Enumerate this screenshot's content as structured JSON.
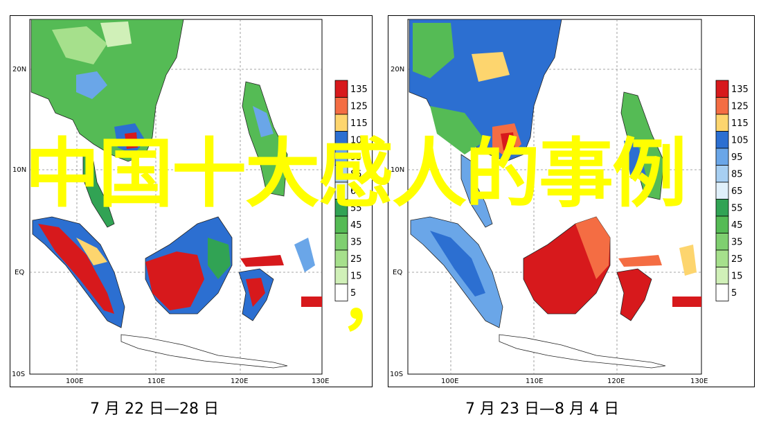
{
  "maps": [
    {
      "id": "left",
      "caption": "7 月 22 日—28 日",
      "lat_labels": [
        "20N",
        "10N",
        "EQ",
        "10S"
      ],
      "lon_labels": [
        "100E",
        "110E",
        "120E",
        "130E"
      ],
      "legend": [
        "135",
        "125",
        "115",
        "105",
        "95",
        "85",
        "65",
        "55",
        "45",
        "35",
        "25",
        "15",
        "5"
      ]
    },
    {
      "id": "right",
      "caption": "7 月 23 日—8 月 4 日",
      "lat_labels": [
        "20N",
        "10N",
        "EQ",
        "10S"
      ],
      "lon_labels": [
        "100E",
        "110E",
        "120E",
        "130E"
      ],
      "legend": [
        "135",
        "125",
        "115",
        "105",
        "95",
        "85",
        "65",
        "55",
        "45",
        "35",
        "25",
        "15",
        "5"
      ]
    }
  ],
  "legend_colors": [
    "#d7191c",
    "#f46d43",
    "#fdd56e",
    "#2c6fd1",
    "#6aa6e8",
    "#a7cff2",
    "#e0f0fa",
    "#31a354",
    "#55bb55",
    "#7fcf70",
    "#a6e08c",
    "#d0f0b8",
    "#ffffff"
  ],
  "overlay": {
    "title": "中国十大感人的事例",
    "comma": "，"
  }
}
